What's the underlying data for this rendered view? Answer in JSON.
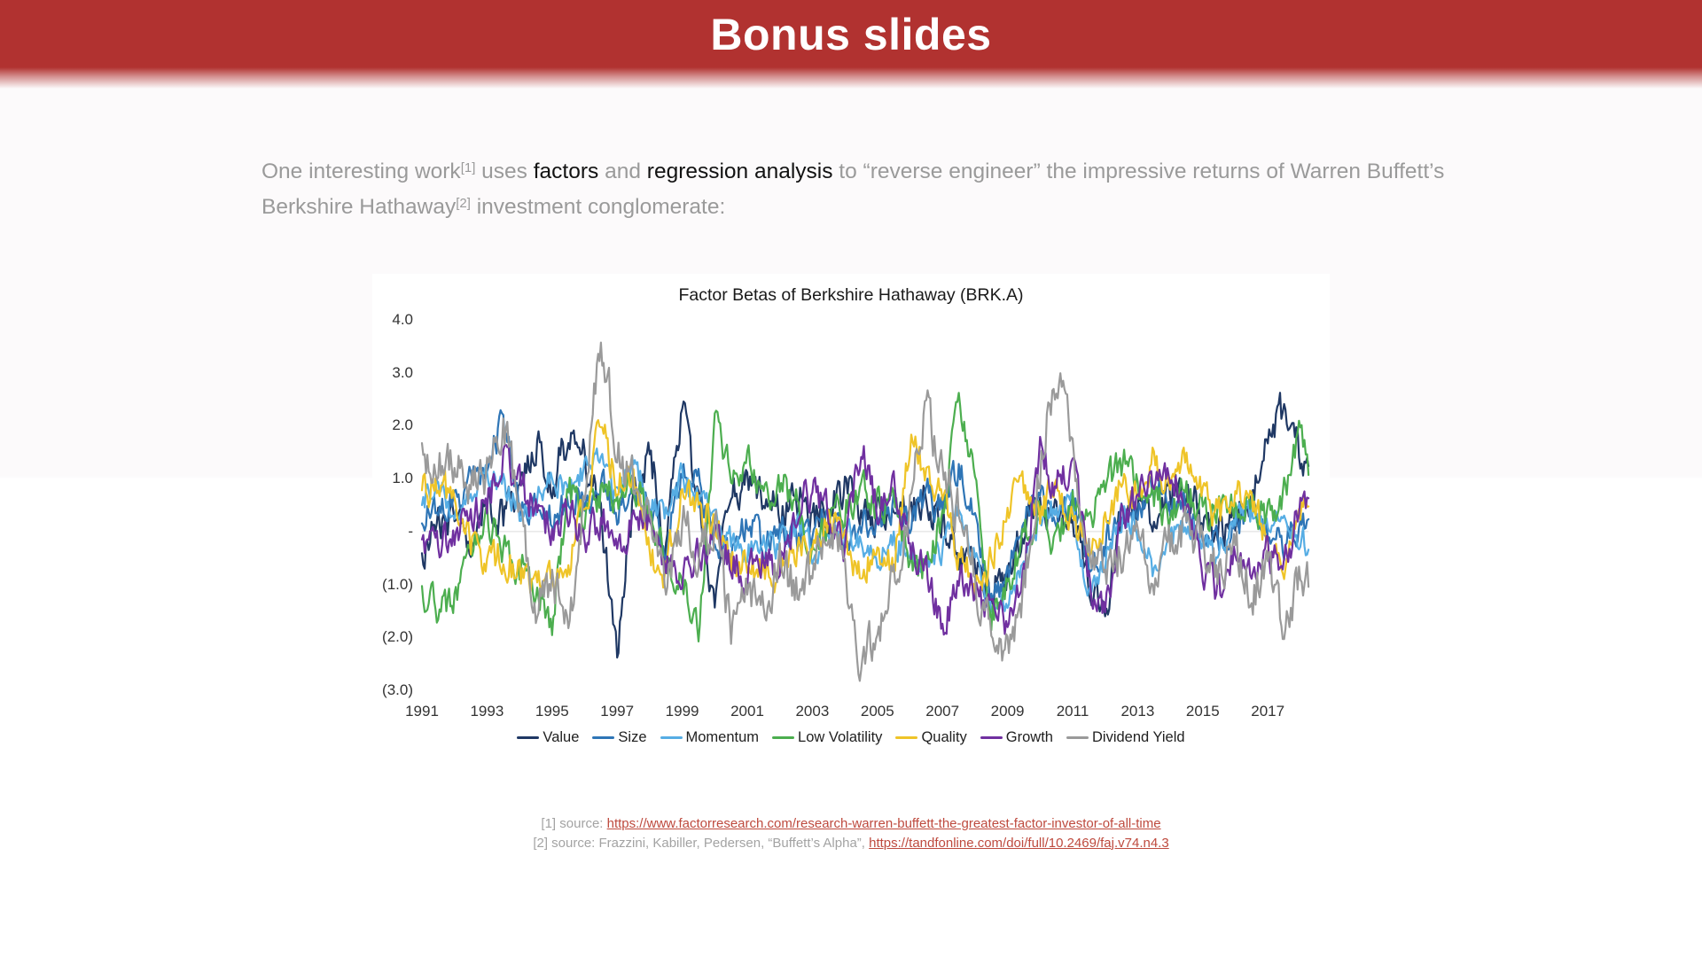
{
  "header": {
    "title": "Bonus slides",
    "bar_color": "#B13230",
    "title_color": "#FFFFFF"
  },
  "intro": {
    "segments": [
      {
        "text": "One interesting work",
        "style": "gray"
      },
      {
        "text": "[1]",
        "style": "sup"
      },
      {
        "text": " uses ",
        "style": "gray"
      },
      {
        "text": "factors",
        "style": "dark"
      },
      {
        "text": " and ",
        "style": "gray"
      },
      {
        "text": "regression analysis",
        "style": "dark"
      },
      {
        "text": " to “reverse engineer” the impressive returns of Warren Buffett’s Berkshire Hathaway",
        "style": "gray"
      },
      {
        "text": "[2]",
        "style": "sup"
      },
      {
        "text": " investment conglomerate:",
        "style": "gray"
      }
    ]
  },
  "chart_data": {
    "type": "line",
    "title": "Factor Betas of Berkshire Hathaway (BRK.A)",
    "xlabel": "",
    "ylabel": "",
    "x_ticks": [
      "1991",
      "1993",
      "1995",
      "1997",
      "1999",
      "2001",
      "2003",
      "2005",
      "2007",
      "2009",
      "2011",
      "2013",
      "2015",
      "2017"
    ],
    "y_ticks": [
      {
        "label": "4.0",
        "value": 4
      },
      {
        "label": "3.0",
        "value": 3
      },
      {
        "label": "2.0",
        "value": 2
      },
      {
        "label": "1.0",
        "value": 1
      },
      {
        "label": "-",
        "value": 0
      },
      {
        "label": "(1.0)",
        "value": -1
      },
      {
        "label": "(2.0)",
        "value": -2
      },
      {
        "label": "(3.0)",
        "value": -3
      }
    ],
    "x_range": [
      1991,
      2018.25
    ],
    "ylim": [
      -3.0,
      4.0
    ],
    "grid": "zero-line-only",
    "zero_line_color": "#DCDCDC",
    "legend_position": "bottom",
    "sampling_note": "monthly betas estimated from plot; anchors every 0.5 years from 1991.0 to 2018.5",
    "anchor_start_year": 1991,
    "anchor_step_years": 0.5,
    "series": [
      {
        "name": "Value",
        "color": "#1F3864",
        "noise": 0.55,
        "anchors": [
          -0.6,
          0.2,
          0.4,
          -0.3,
          0.6,
          0.3,
          1.0,
          1.7,
          0.9,
          1.8,
          1.4,
          0.3,
          -2.1,
          0.6,
          1.6,
          -0.4,
          2.4,
          0.6,
          -1.3,
          0.8,
          0.9,
          0.7,
          0.4,
          0.7,
          0.2,
          0.4,
          0.9,
          0.5,
          0.3,
          0.6,
          0.4,
          0.6,
          0.1,
          -0.4,
          -0.6,
          -1.1,
          -0.9,
          0.2,
          0.5,
          0.3,
          0.4,
          -1.0,
          -1.6,
          0.3,
          0.5,
          0.3,
          0.8,
          0.9,
          0.2,
          0.1,
          0.3,
          0.6,
          1.6,
          2.4,
          1.4,
          0.6
        ]
      },
      {
        "name": "Size",
        "color": "#2E75B6",
        "noise": 0.45,
        "anchors": [
          0.2,
          0.5,
          0.6,
          0.9,
          1.2,
          2.1,
          0.6,
          0.4,
          0.3,
          0.6,
          0.5,
          0.9,
          0.4,
          0.9,
          0.5,
          -0.4,
          1.2,
          0.9,
          -0.2,
          -0.4,
          0.2,
          -0.3,
          0.1,
          -0.2,
          0.0,
          0.2,
          -0.2,
          0.1,
          0.3,
          0.5,
          0.2,
          0.7,
          0.4,
          1.3,
          0.2,
          -1.3,
          -0.9,
          0.4,
          0.6,
          0.3,
          0.6,
          -0.5,
          -0.3,
          0.6,
          0.4,
          0.9,
          0.6,
          0.4,
          0.0,
          -0.3,
          0.2,
          0.4,
          0.1,
          -0.3,
          0.2,
          0.2
        ]
      },
      {
        "name": "Momentum",
        "color": "#56ADE4",
        "noise": 0.4,
        "anchors": [
          0.6,
          0.8,
          0.5,
          0.8,
          1.1,
          0.9,
          0.4,
          0.6,
          1.0,
          0.8,
          1.1,
          1.3,
          0.7,
          1.2,
          0.6,
          0.3,
          1.0,
          0.6,
          0.3,
          -0.2,
          -0.4,
          -0.1,
          -0.3,
          0.1,
          -0.3,
          -0.2,
          0.0,
          -0.3,
          -0.5,
          -0.2,
          -0.4,
          -0.7,
          -0.3,
          0.5,
          -0.4,
          -1.5,
          -1.3,
          -0.6,
          0.3,
          0.5,
          0.4,
          -1.2,
          -0.6,
          0.3,
          0.0,
          -0.8,
          -0.2,
          0.2,
          -0.2,
          -0.4,
          0.3,
          0.4,
          0.2,
          0.4,
          -0.2,
          -0.1
        ]
      },
      {
        "name": "Low Volatility",
        "color": "#4CAE4F",
        "noise": 0.5,
        "anchors": [
          -1.2,
          -1.5,
          -1.2,
          -0.2,
          0.3,
          -0.4,
          -0.6,
          -1.0,
          -1.7,
          0.8,
          0.3,
          0.8,
          0.5,
          1.0,
          0.3,
          -0.6,
          -0.9,
          -1.9,
          2.0,
          1.0,
          1.3,
          0.8,
          0.9,
          0.6,
          -0.3,
          0.2,
          0.4,
          0.8,
          0.5,
          0.6,
          -0.5,
          -0.8,
          0.3,
          2.3,
          1.0,
          -1.6,
          -0.9,
          -0.2,
          0.4,
          -0.3,
          0.6,
          0.3,
          0.8,
          1.3,
          0.9,
          0.6,
          0.3,
          0.8,
          0.4,
          0.3,
          0.6,
          0.5,
          0.3,
          0.8,
          1.9,
          0.5
        ]
      },
      {
        "name": "Quality",
        "color": "#EFC428",
        "noise": 0.5,
        "anchors": [
          0.7,
          0.9,
          0.6,
          -0.3,
          -0.6,
          -0.5,
          -0.8,
          -1.1,
          -0.9,
          -0.6,
          0.5,
          2.0,
          0.8,
          1.2,
          -0.4,
          -0.8,
          0.8,
          0.4,
          0.2,
          -0.5,
          -0.6,
          -0.8,
          -0.7,
          -0.3,
          -0.4,
          0.3,
          -0.2,
          -0.8,
          -0.4,
          -0.6,
          1.7,
          1.2,
          0.7,
          -0.5,
          -1.0,
          -0.6,
          0.3,
          0.9,
          0.4,
          0.8,
          0.3,
          -0.4,
          0.2,
          0.9,
          0.6,
          1.4,
          0.8,
          1.5,
          0.6,
          0.3,
          0.9,
          0.6,
          -0.3,
          -0.9,
          0.4,
          0.4
        ]
      },
      {
        "name": "Growth",
        "color": "#7030A0",
        "noise": 0.5,
        "anchors": [
          -0.3,
          -0.2,
          0.0,
          0.2,
          0.6,
          1.4,
          0.9,
          0.4,
          0.1,
          0.4,
          -0.2,
          0.3,
          -0.3,
          0.3,
          0.1,
          -0.6,
          -0.8,
          -0.4,
          -0.2,
          -0.6,
          -0.8,
          -0.5,
          -0.7,
          0.4,
          0.8,
          0.3,
          -0.5,
          1.7,
          0.4,
          0.8,
          -0.3,
          -0.6,
          -2.0,
          -0.8,
          -1.2,
          -1.5,
          -1.8,
          -0.9,
          1.6,
          0.8,
          1.4,
          -0.9,
          -1.7,
          0.3,
          0.6,
          0.9,
          1.3,
          0.4,
          -0.6,
          -1.2,
          -0.5,
          -0.9,
          -0.4,
          -0.7,
          0.5,
          0.6
        ]
      },
      {
        "name": "Dividend Yield",
        "color": "#9A9A9A",
        "noise": 0.65,
        "anchors": [
          1.5,
          1.2,
          1.4,
          0.8,
          1.0,
          2.2,
          0.3,
          -1.5,
          -0.8,
          -1.9,
          0.6,
          3.7,
          1.6,
          0.9,
          0.2,
          -1.3,
          0.4,
          -0.6,
          0.3,
          -1.9,
          -1.0,
          -1.6,
          -0.6,
          -1.1,
          -0.8,
          0.4,
          -0.7,
          -2.5,
          -2.0,
          -0.8,
          0.3,
          2.5,
          1.0,
          0.4,
          -0.9,
          -2.0,
          -2.4,
          -1.0,
          1.3,
          3.0,
          1.5,
          -0.3,
          -0.8,
          -0.4,
          0.5,
          -1.0,
          -0.2,
          0.2,
          -0.4,
          -0.7,
          -0.3,
          -1.2,
          -0.6,
          -1.7,
          -0.9,
          -0.8
        ]
      }
    ]
  },
  "footnotes": [
    {
      "prefix": "[1] source: ",
      "link": "https://www.factorresearch.com/research-warren-buffett-the-greatest-factor-investor-of-all-time"
    },
    {
      "prefix": "[2] source: Frazzini, Kabiller, Pedersen, “Buffett’s Alpha”, ",
      "link": "https://tandfonline.com/doi/full/10.2469/faj.v74.n4.3"
    }
  ],
  "colors": {
    "accent_red": "#B13230",
    "link_red": "#BE4A3E",
    "gray_text": "#9A9A9A"
  }
}
